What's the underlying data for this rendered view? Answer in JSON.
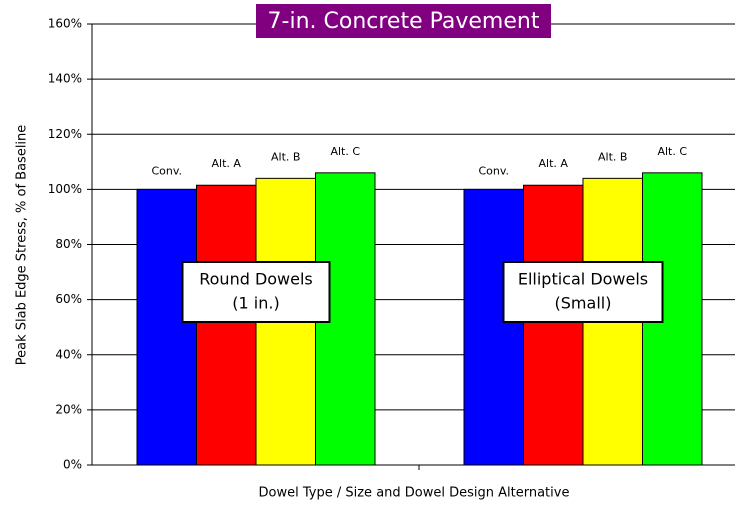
{
  "chart_data": {
    "type": "bar",
    "title": "7-in. Concrete Pavement",
    "y_label": "Peak Slab Edge Stress, % of Baseline",
    "x_label": "Dowel Type / Size and Dowel Design Alternative",
    "categories": [
      [
        "Round Dowels",
        "(1 in.)"
      ],
      [
        "Elliptical Dowels",
        "(Small)"
      ]
    ],
    "series": [
      {
        "name": "Conv.",
        "color": "#0000ff",
        "values": [
          100,
          100
        ]
      },
      {
        "name": "Alt. A",
        "color": "#ff0000",
        "values": [
          101.5,
          101.5
        ]
      },
      {
        "name": "Alt. B",
        "color": "#ffff00",
        "values": [
          104,
          104
        ]
      },
      {
        "name": "Alt. C",
        "color": "#00ff00",
        "values": [
          106,
          106
        ]
      }
    ],
    "ylim": [
      0,
      160
    ],
    "yticks": [
      {
        "value": 0,
        "label": "0%"
      },
      {
        "value": 20,
        "label": "20%"
      },
      {
        "value": 40,
        "label": "40%"
      },
      {
        "value": 60,
        "label": "60%"
      },
      {
        "value": 80,
        "label": "80%"
      },
      {
        "value": 100,
        "label": "100%"
      },
      {
        "value": 120,
        "label": "120%"
      },
      {
        "value": 140,
        "label": "140%"
      },
      {
        "value": 160,
        "label": "160%"
      }
    ],
    "grid": true
  }
}
